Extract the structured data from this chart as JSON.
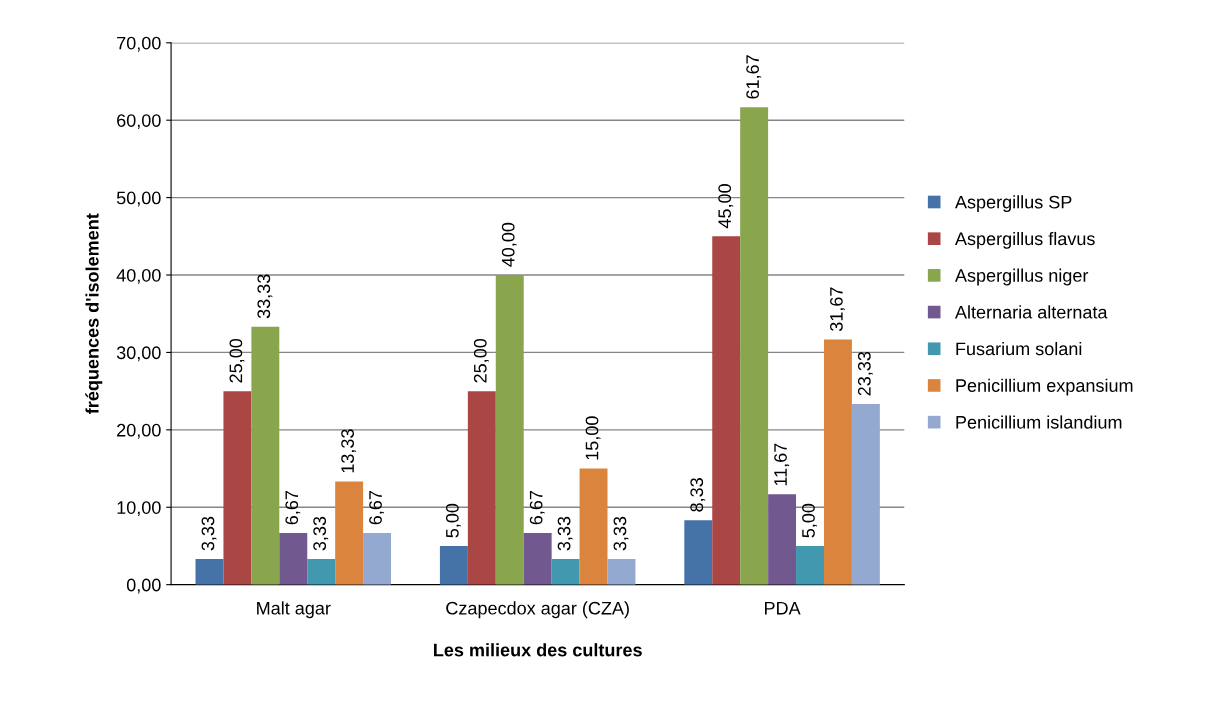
{
  "chart_data": {
    "type": "bar",
    "xlabel": "Les milieux des cultures",
    "ylabel": "fréquences d'isolement",
    "categories": [
      "Malt agar",
      "Czapecdox agar (CZA)",
      "PDA"
    ],
    "series": [
      {
        "name": "Aspergillus SP",
        "color": "#4572a7",
        "values": [
          3.33,
          5.0,
          8.33
        ],
        "value_labels": [
          "3,33",
          "5,00",
          "8,33"
        ]
      },
      {
        "name": "Aspergillus flavus",
        "color": "#aa4643",
        "values": [
          25.0,
          25.0,
          45.0
        ],
        "value_labels": [
          "25,00",
          "25,00",
          "45,00"
        ]
      },
      {
        "name": "Aspergillus niger",
        "color": "#89a54e",
        "values": [
          33.33,
          40.0,
          61.67
        ],
        "value_labels": [
          "33,33",
          "40,00",
          "61,67"
        ]
      },
      {
        "name": "Alternaria alternata",
        "color": "#71588f",
        "values": [
          6.67,
          6.67,
          11.67
        ],
        "value_labels": [
          "6,67",
          "6,67",
          "11,67"
        ]
      },
      {
        "name": "Fusarium solani",
        "color": "#4198af",
        "values": [
          3.33,
          3.33,
          5.0
        ],
        "value_labels": [
          "3,33",
          "3,33",
          "5,00"
        ]
      },
      {
        "name": "Penicillium expansium",
        "color": "#db843d",
        "values": [
          13.33,
          15.0,
          31.67
        ],
        "value_labels": [
          "13,33",
          "15,00",
          "31,67"
        ]
      },
      {
        "name": "Penicillium islandium",
        "color": "#93a9cf",
        "values": [
          6.67,
          3.33,
          23.33
        ],
        "value_labels": [
          "6,67",
          "3,33",
          "23,33"
        ]
      }
    ],
    "ylim": [
      0,
      70
    ],
    "yticks": [
      {
        "value": 0,
        "label": "0,00"
      },
      {
        "value": 10,
        "label": "10,00"
      },
      {
        "value": 20,
        "label": "20,00"
      },
      {
        "value": 30,
        "label": "30,00"
      },
      {
        "value": 40,
        "label": "40,00"
      },
      {
        "value": 50,
        "label": "50,00"
      },
      {
        "value": 60,
        "label": "60,00"
      },
      {
        "value": 70,
        "label": "70,00"
      }
    ],
    "grid": "y",
    "legend": "right"
  }
}
